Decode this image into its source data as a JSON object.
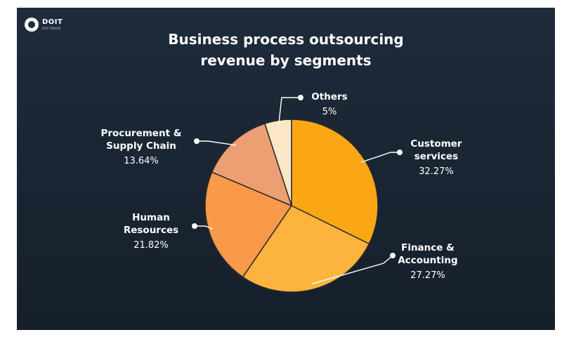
{
  "brand": {
    "logo_text": "DOIT",
    "logo_subtext": "SOFTWARE"
  },
  "chart_data": {
    "type": "pie",
    "title": "Business process outsourcing revenue by segments",
    "title_lines": [
      "Business process outsourcing",
      "revenue by segments"
    ],
    "slices": [
      {
        "name": "Customer services",
        "name_lines": [
          "Customer",
          "services"
        ],
        "value": 32.27,
        "value_label": "32.27%",
        "color": "#fba715"
      },
      {
        "name": "Finance & Accounting",
        "name_lines": [
          "Finance &",
          "Accounting"
        ],
        "value": 27.27,
        "value_label": "27.27%",
        "color": "#fcb43f"
      },
      {
        "name": "Human Resources",
        "name_lines": [
          "Human",
          "Resources"
        ],
        "value": 21.82,
        "value_label": "21.82%",
        "color": "#f99a4a"
      },
      {
        "name": "Procurement & Supply Chain",
        "name_lines": [
          "Procurement &",
          "Supply Chain"
        ],
        "value": 13.64,
        "value_label": "13.64%",
        "color": "#eb9f73"
      },
      {
        "name": "Others",
        "name_lines": [
          "Others"
        ],
        "value": 5,
        "value_label": "5%",
        "color": "#fde7c7"
      }
    ],
    "start_angle_deg": 0,
    "direction": "clockwise",
    "legend": "none"
  },
  "colors": {
    "background": "#1c2736",
    "slice_border": "#2a2a2a",
    "text": "#ffffff"
  }
}
